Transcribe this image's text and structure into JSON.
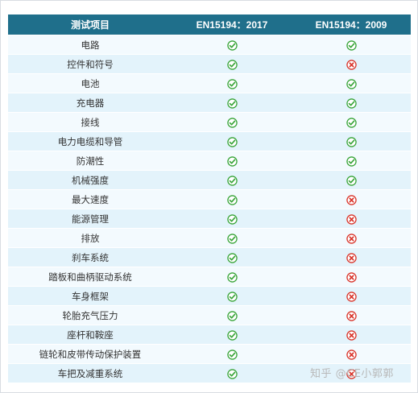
{
  "table": {
    "headers": {
      "item": "测试项目",
      "std2017": "EN15194：2017",
      "std2009": "EN15194：2009"
    },
    "status_colors": {
      "pass": "#3aa53a",
      "fail": "#d9352b"
    },
    "rows": [
      {
        "item": "电路",
        "std2017": "pass",
        "std2009": "pass"
      },
      {
        "item": "控件和符号",
        "std2017": "pass",
        "std2009": "fail"
      },
      {
        "item": "电池",
        "std2017": "pass",
        "std2009": "pass"
      },
      {
        "item": "充电器",
        "std2017": "pass",
        "std2009": "pass"
      },
      {
        "item": "接线",
        "std2017": "pass",
        "std2009": "pass"
      },
      {
        "item": "电力电缆和导管",
        "std2017": "pass",
        "std2009": "pass"
      },
      {
        "item": "防潮性",
        "std2017": "pass",
        "std2009": "pass"
      },
      {
        "item": "机械强度",
        "std2017": "pass",
        "std2009": "pass"
      },
      {
        "item": "最大速度",
        "std2017": "pass",
        "std2009": "fail"
      },
      {
        "item": "能源管理",
        "std2017": "pass",
        "std2009": "fail"
      },
      {
        "item": "排放",
        "std2017": "pass",
        "std2009": "fail"
      },
      {
        "item": "刹车系统",
        "std2017": "pass",
        "std2009": "fail"
      },
      {
        "item": "踏板和曲柄驱动系统",
        "std2017": "pass",
        "std2009": "fail"
      },
      {
        "item": "车身框架",
        "std2017": "pass",
        "std2009": "fail"
      },
      {
        "item": "轮胎充气压力",
        "std2017": "pass",
        "std2009": "fail"
      },
      {
        "item": "座杆和鞍座",
        "std2017": "pass",
        "std2009": "fail"
      },
      {
        "item": "链轮和皮带传动保护装置",
        "std2017": "pass",
        "std2009": "fail"
      },
      {
        "item": "车把及减重系统",
        "std2017": "pass",
        "std2009": "fail"
      }
    ]
  },
  "watermark": {
    "text": "知乎 @CE小郭郭"
  }
}
